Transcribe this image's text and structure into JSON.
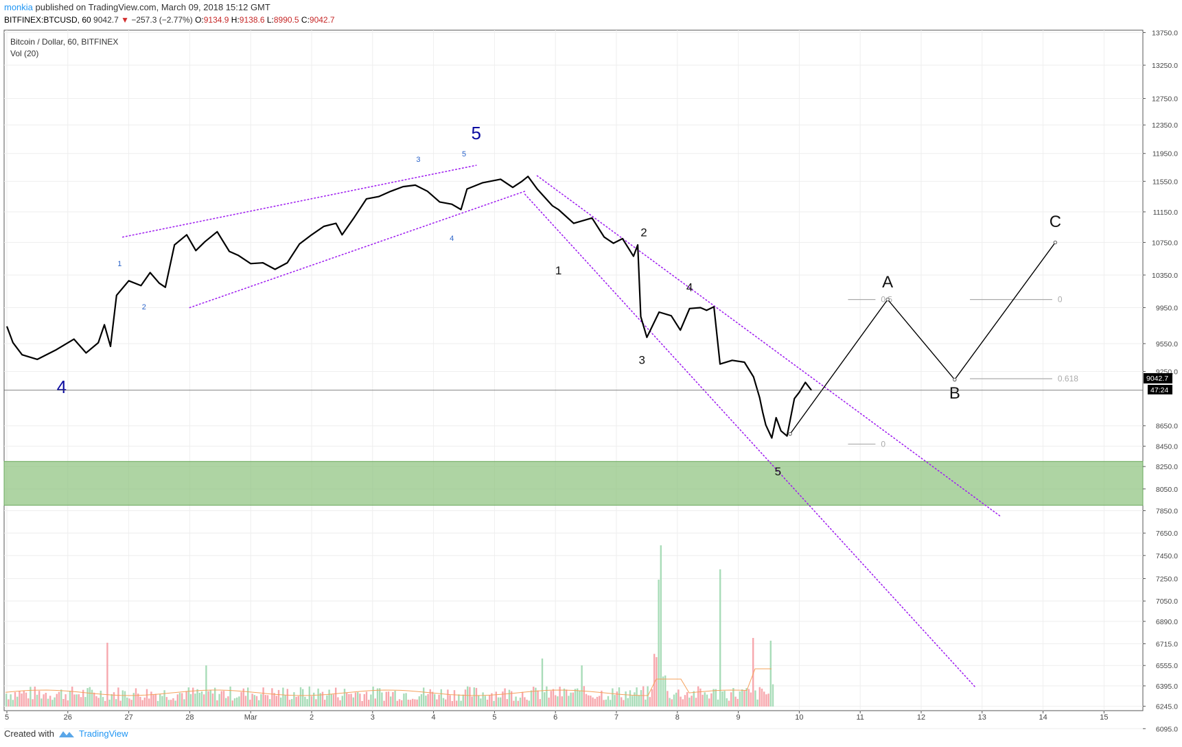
{
  "header": {
    "user": "monkia",
    "published": " published on TradingView.com, March 09, 2018 15:12 GMT",
    "symbol": "BITFINEX:BTCUSD, 60",
    "last": "9042.7",
    "change": "−257.3 (−2.77%)",
    "o_label": "O:",
    "o_val": "9134.9",
    "h_label": "H:",
    "h_val": "9138.6",
    "l_label": "L:",
    "l_val": "8990.5",
    "c_label": "C:",
    "c_val": "9042.7"
  },
  "legend": {
    "title": "Bitcoin / Dollar, 60, BITFINEX",
    "vol": "Vol (20)"
  },
  "footer": {
    "created": "Created with",
    "brand": "TradingView"
  },
  "colors": {
    "price_line": "#000000",
    "channel": "#a020f0",
    "zone": "#8cc27c",
    "vol_up": "#a8dcb8",
    "vol_down": "#f7a7ad",
    "wave_major": "#0a0aa0",
    "wave_minor": "#2a63c9"
  },
  "chart_data": {
    "type": "line",
    "xlabel": "",
    "ylabel": "",
    "x_ticks": [
      "5",
      "26",
      "27",
      "28",
      "Mar",
      "2",
      "3",
      "4",
      "5",
      "6",
      "7",
      "8",
      "9",
      "10",
      "11",
      "12",
      "13",
      "14",
      "15"
    ],
    "y_ticks": [
      "13750.0",
      "13250.0",
      "12750.0",
      "12350.0",
      "11950.0",
      "11550.0",
      "11150.0",
      "10750.0",
      "10350.0",
      "9950.0",
      "9550.0",
      "9250.0",
      "8650.0",
      "8450.0",
      "8250.0",
      "8050.0",
      "7850.0",
      "7650.0",
      "7450.0",
      "7250.0",
      "7050.0",
      "6890.0",
      "6715.0",
      "6555.0",
      "6395.0",
      "6245.0",
      "6095.0"
    ],
    "ylim": [
      6030,
      13800
    ],
    "last_price": "9042.7",
    "countdown": "47:24",
    "price_series": [
      [
        24.5,
        9742
      ],
      [
        24.6,
        9560
      ],
      [
        24.75,
        9430
      ],
      [
        25.0,
        9380
      ],
      [
        25.3,
        9480
      ],
      [
        25.6,
        9600
      ],
      [
        25.8,
        9450
      ],
      [
        26.0,
        9560
      ],
      [
        26.1,
        9760
      ],
      [
        26.2,
        9520
      ],
      [
        26.3,
        10100
      ],
      [
        26.5,
        10280
      ],
      [
        26.7,
        10220
      ],
      [
        26.85,
        10380
      ],
      [
        27.0,
        10250
      ],
      [
        27.1,
        10200
      ],
      [
        27.25,
        10720
      ],
      [
        27.45,
        10850
      ],
      [
        27.6,
        10650
      ],
      [
        27.75,
        10760
      ],
      [
        27.95,
        10890
      ],
      [
        28.15,
        10640
      ],
      [
        28.3,
        10590
      ],
      [
        28.5,
        10490
      ],
      [
        28.7,
        10500
      ],
      [
        28.9,
        10420
      ],
      [
        29.1,
        10500
      ],
      [
        29.3,
        10730
      ],
      [
        29.5,
        10850
      ],
      [
        29.7,
        10960
      ],
      [
        29.9,
        11000
      ],
      [
        30.0,
        10850
      ],
      [
        30.2,
        11080
      ],
      [
        30.4,
        11320
      ],
      [
        30.6,
        11350
      ],
      [
        30.8,
        11420
      ],
      [
        31.0,
        11480
      ],
      [
        31.2,
        11500
      ],
      [
        31.4,
        11420
      ],
      [
        31.6,
        11280
      ],
      [
        31.8,
        11250
      ],
      [
        31.95,
        11180
      ],
      [
        32.05,
        11450
      ],
      [
        32.3,
        11530
      ],
      [
        32.6,
        11580
      ],
      [
        32.8,
        11470
      ],
      [
        32.95,
        11550
      ],
      [
        33.05,
        11620
      ],
      [
        33.2,
        11450
      ],
      [
        33.45,
        11230
      ],
      [
        33.55,
        11180
      ],
      [
        33.8,
        11000
      ],
      [
        34.1,
        11070
      ],
      [
        34.3,
        10820
      ],
      [
        34.45,
        10740
      ],
      [
        34.6,
        10800
      ],
      [
        34.78,
        10580
      ],
      [
        34.85,
        10720
      ],
      [
        34.9,
        9850
      ],
      [
        35.0,
        9620
      ],
      [
        35.2,
        9900
      ],
      [
        35.4,
        9860
      ],
      [
        35.55,
        9700
      ],
      [
        35.7,
        9940
      ],
      [
        35.88,
        9950
      ],
      [
        35.98,
        9920
      ],
      [
        36.1,
        9960
      ],
      [
        36.2,
        9330
      ],
      [
        36.4,
        9370
      ],
      [
        36.6,
        9350
      ],
      [
        36.75,
        9190
      ],
      [
        36.85,
        8960
      ],
      [
        36.9,
        8800
      ],
      [
        36.95,
        8660
      ],
      [
        37.05,
        8530
      ],
      [
        37.12,
        8740
      ],
      [
        37.2,
        8600
      ],
      [
        37.3,
        8550
      ],
      [
        37.42,
        8950
      ],
      [
        37.5,
        9020
      ],
      [
        37.6,
        9130
      ],
      [
        37.7,
        9042
      ]
    ],
    "volume_labels": "",
    "channel_lines": [
      {
        "name": "upper-1",
        "from": [
          26.4,
          10820
        ],
        "to": [
          32.2,
          11780
        ]
      },
      {
        "name": "lower-1",
        "from": [
          27.5,
          9950
        ],
        "to": [
          33.0,
          11420
        ]
      },
      {
        "name": "upper-2",
        "from": [
          33.2,
          11630
        ],
        "to": [
          40.8,
          7800
        ]
      },
      {
        "name": "lower-2",
        "from": [
          33.0,
          11380
        ],
        "to": [
          40.4,
          6380
        ]
      }
    ],
    "projection": [
      [
        37.35,
        8570
      ],
      [
        38.95,
        10050
      ],
      [
        40.05,
        9160
      ],
      [
        41.7,
        10750
      ]
    ],
    "zone": {
      "from": 7900,
      "to": 8300
    },
    "fib_levels": [
      {
        "label": "0.5",
        "x1": 38.3,
        "x2": 38.75,
        "y": 10050
      },
      {
        "label": "0",
        "x1": 40.3,
        "x2": 41.65,
        "y": 10050
      },
      {
        "label": "0.618",
        "x1": 40.3,
        "x2": 41.65,
        "y": 9170
      },
      {
        "label": "0",
        "x1": 38.3,
        "x2": 38.75,
        "y": 8470
      }
    ],
    "wave_labels": [
      {
        "text": "4",
        "x": 25.4,
        "y": 9010,
        "style": "major"
      },
      {
        "text": "5",
        "x": 32.2,
        "y": 12150,
        "style": "major"
      },
      {
        "text": "1",
        "x": 26.35,
        "y": 10460,
        "style": "minor"
      },
      {
        "text": "2",
        "x": 26.75,
        "y": 9930,
        "style": "minor"
      },
      {
        "text": "3",
        "x": 31.25,
        "y": 11830,
        "style": "minor"
      },
      {
        "text": "4",
        "x": 31.8,
        "y": 10770,
        "style": "minor"
      },
      {
        "text": "5",
        "x": 32.0,
        "y": 11910,
        "style": "minor"
      },
      {
        "text": "1",
        "x": 33.55,
        "y": 10360,
        "style": "sub"
      },
      {
        "text": "2",
        "x": 34.95,
        "y": 10830,
        "style": "sub"
      },
      {
        "text": "3",
        "x": 34.92,
        "y": 9330,
        "style": "sub"
      },
      {
        "text": "4",
        "x": 35.7,
        "y": 10150,
        "style": "sub"
      },
      {
        "text": "5",
        "x": 37.15,
        "y": 8170,
        "style": "sub"
      },
      {
        "text": "A",
        "x": 38.95,
        "y": 10200,
        "style": "abc"
      },
      {
        "text": "B",
        "x": 40.05,
        "y": 8950,
        "style": "abc"
      },
      {
        "text": "C",
        "x": 41.7,
        "y": 10950,
        "style": "abc"
      }
    ]
  }
}
